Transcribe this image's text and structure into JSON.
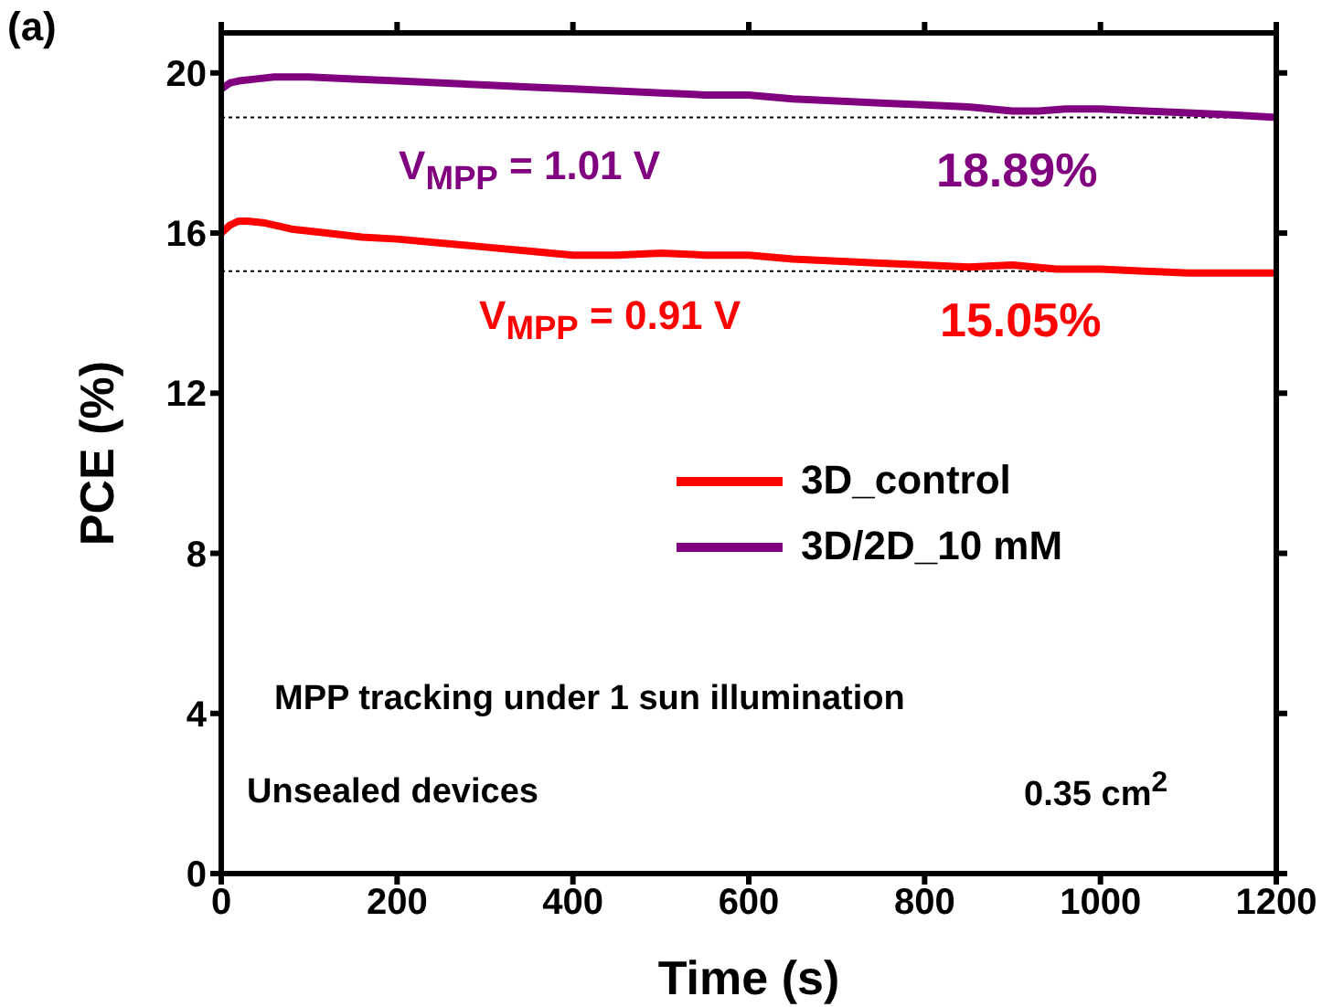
{
  "chart_data": {
    "type": "line",
    "xlabel": "Time (s)",
    "ylabel": "PCE (%)",
    "xlim": [
      0,
      1200
    ],
    "xticks": [
      0,
      200,
      400,
      600,
      800,
      1000,
      1200
    ],
    "ylim": [
      0,
      21
    ],
    "yticks": [
      0,
      4,
      8,
      12,
      16,
      20
    ],
    "grid": false,
    "legend": "right",
    "marker": "none",
    "line_style": "solid",
    "series": [
      {
        "name": "3D_control",
        "color": "#ff0000",
        "x": [
          0,
          10,
          20,
          30,
          50,
          80,
          120,
          160,
          200,
          250,
          300,
          350,
          400,
          450,
          500,
          550,
          600,
          650,
          700,
          750,
          800,
          850,
          900,
          950,
          1000,
          1050,
          1100,
          1150,
          1200
        ],
        "values": [
          16.0,
          16.2,
          16.3,
          16.3,
          16.25,
          16.1,
          16.0,
          15.9,
          15.85,
          15.75,
          15.65,
          15.55,
          15.45,
          15.45,
          15.5,
          15.45,
          15.45,
          15.35,
          15.3,
          15.25,
          15.2,
          15.15,
          15.2,
          15.1,
          15.1,
          15.05,
          15.0,
          15.0,
          15.0
        ]
      },
      {
        "name": "3D/2D_10 mM",
        "color": "#800080",
        "x": [
          0,
          10,
          20,
          40,
          60,
          80,
          100,
          150,
          200,
          250,
          300,
          350,
          400,
          450,
          500,
          550,
          600,
          650,
          700,
          750,
          800,
          850,
          900,
          930,
          960,
          1000,
          1050,
          1100,
          1150,
          1200
        ],
        "values": [
          19.6,
          19.75,
          19.8,
          19.85,
          19.9,
          19.9,
          19.9,
          19.85,
          19.8,
          19.75,
          19.7,
          19.65,
          19.6,
          19.55,
          19.5,
          19.45,
          19.45,
          19.35,
          19.3,
          19.25,
          19.2,
          19.15,
          19.05,
          19.05,
          19.1,
          19.1,
          19.05,
          19.0,
          18.95,
          18.89
        ]
      }
    ],
    "ref_lines": [
      {
        "axis": "y",
        "value": 18.89,
        "line_style": "dotted",
        "color": "#000000"
      },
      {
        "axis": "y",
        "value": 15.05,
        "line_style": "dotted",
        "color": "#000000"
      }
    ],
    "annotations": [
      "V$_{MPP}$ = 1.01 V",
      "18.89%",
      "V$_{MPP}$ = 0.91 V",
      "15.05%",
      "MPP tracking under 1 sun illumination",
      "Unsealed devices",
      "0.35 cm$^{2}$",
      "(a)"
    ]
  }
}
